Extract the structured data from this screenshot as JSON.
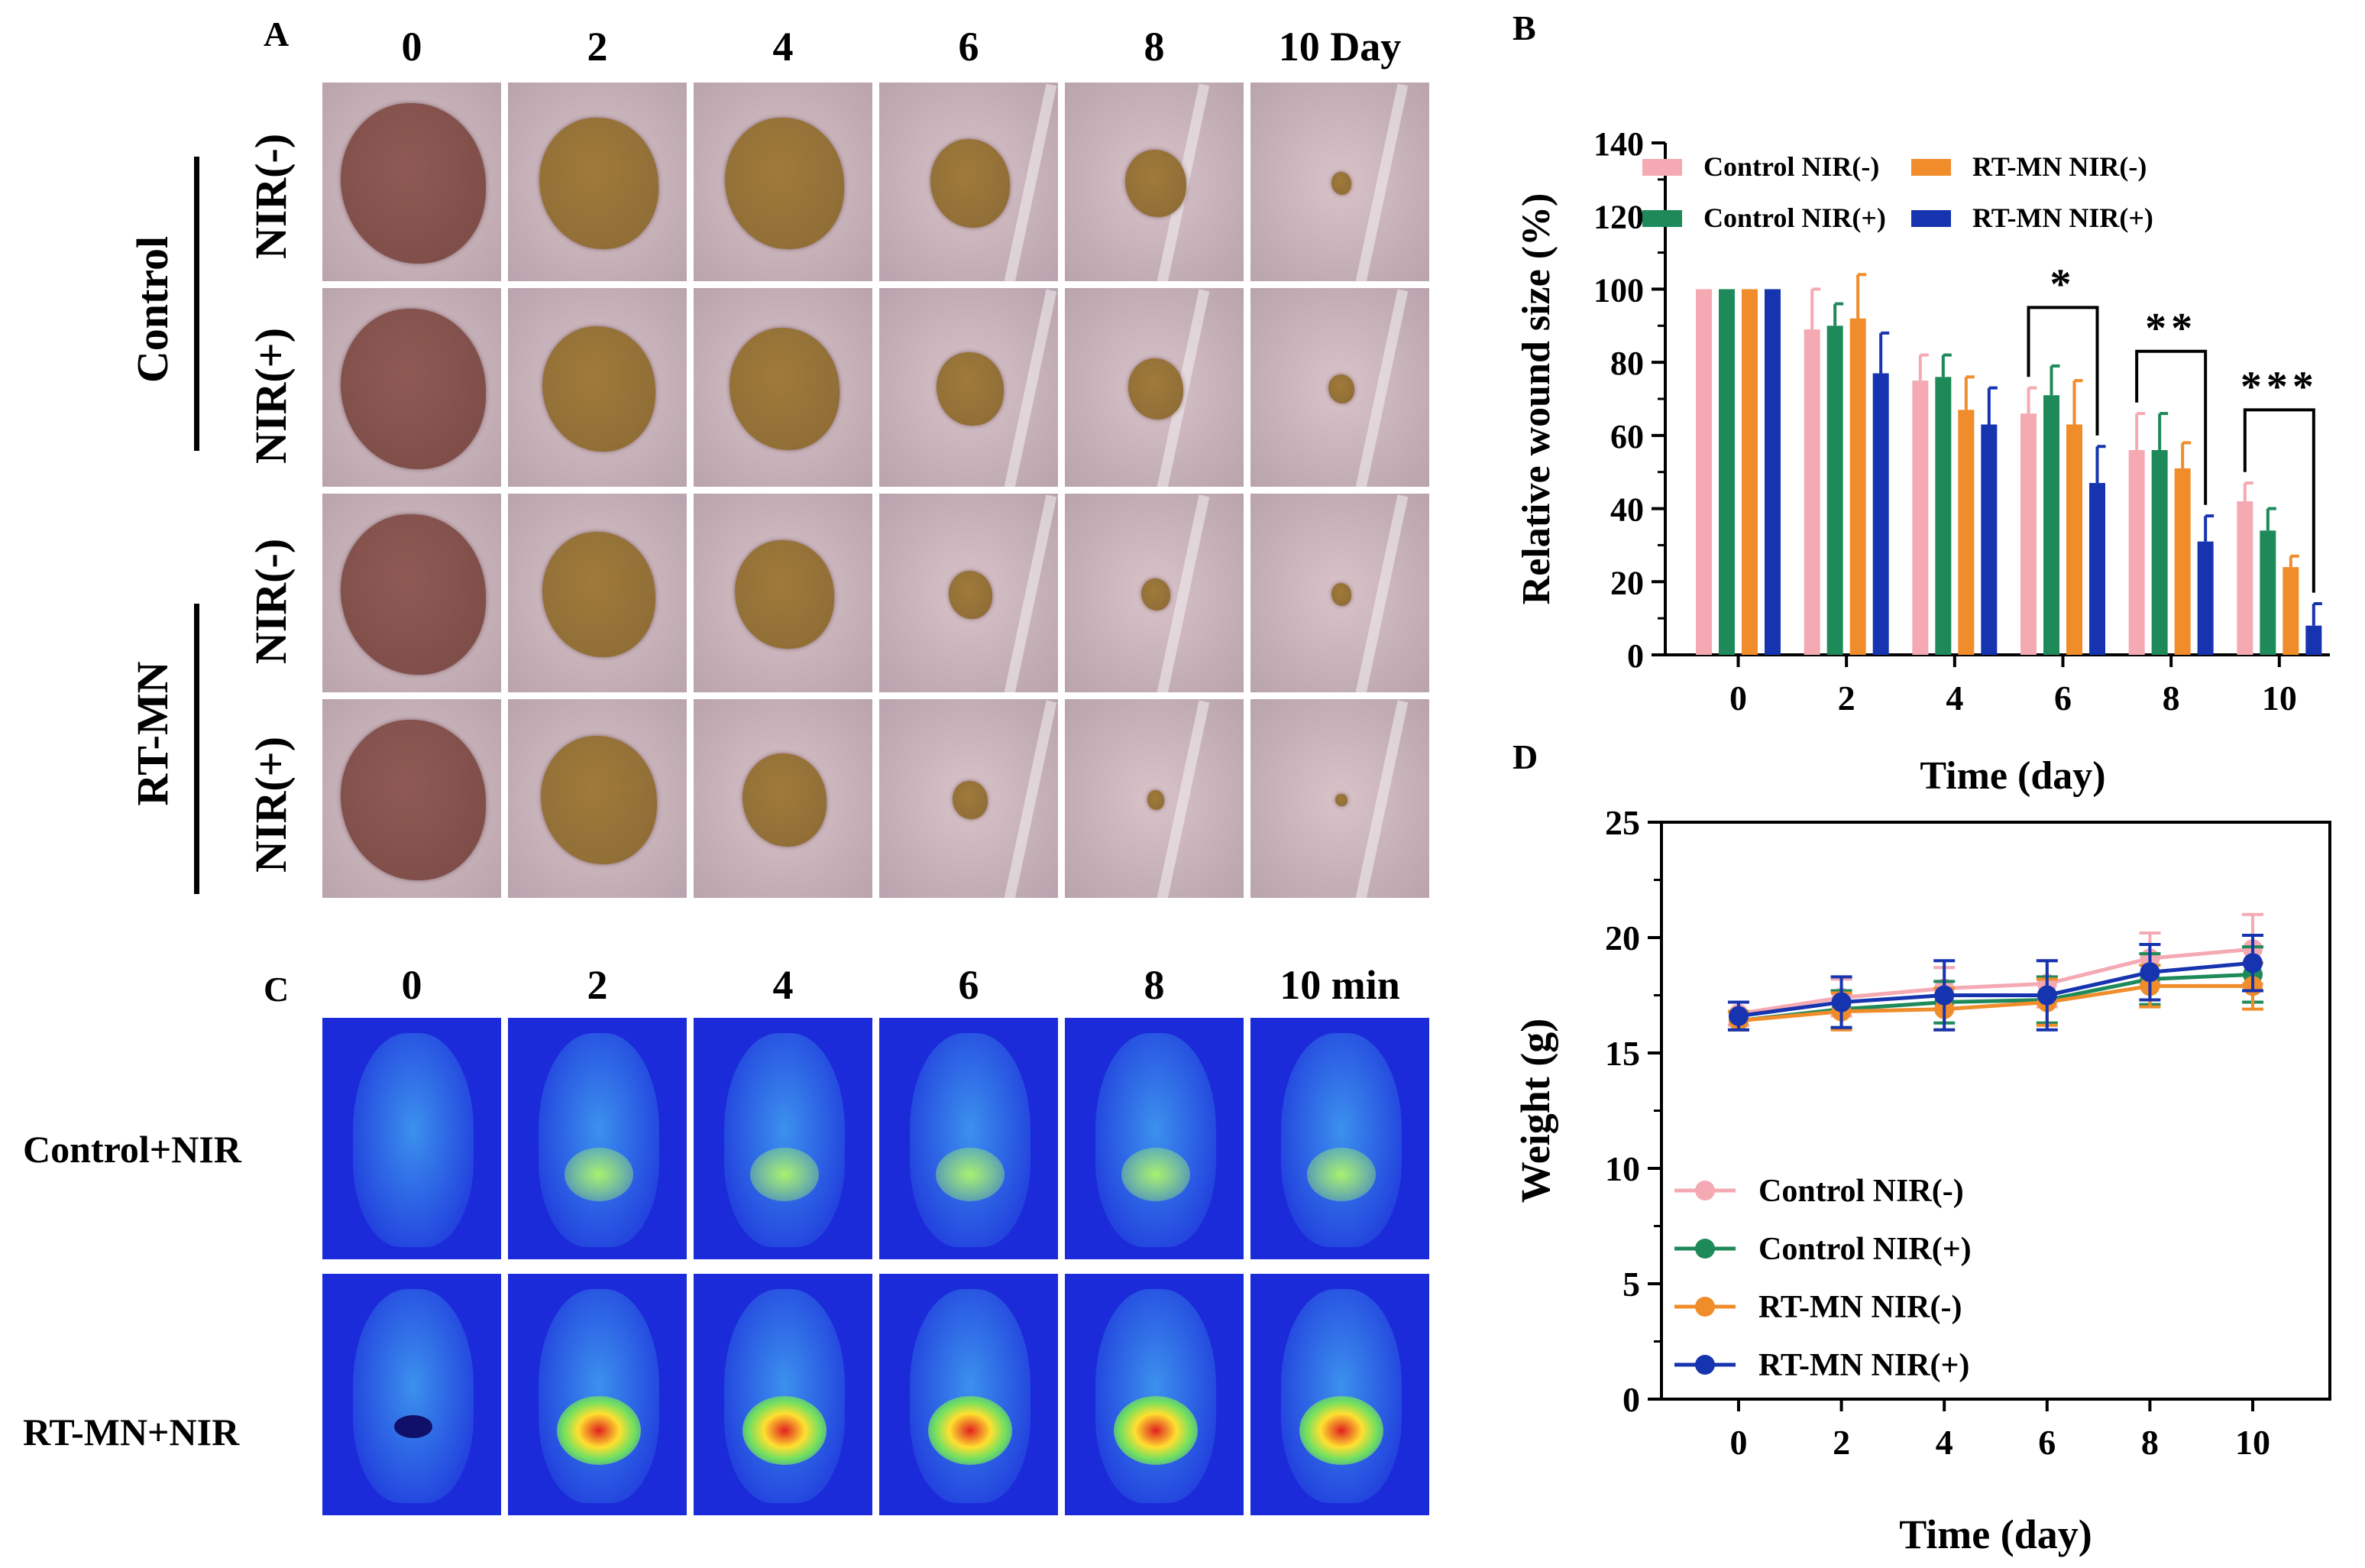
{
  "panel_a": {
    "label": "A",
    "days": [
      "0",
      "2",
      "4",
      "6",
      "8",
      "10 Day"
    ],
    "groups": [
      {
        "name": "Control",
        "rows": [
          "NIR(-)",
          "NIR(+)"
        ]
      },
      {
        "name": "RT-MN",
        "rows": [
          "NIR(-)",
          "NIR(+)"
        ]
      }
    ],
    "wound_photo_colors": {
      "skin": "#d9c3c9",
      "wound_day0": "#7a4a45",
      "wound_scab": "#8a6a35",
      "fur": "#f2f0f2"
    }
  },
  "panel_c": {
    "label": "C",
    "times": [
      "0",
      "2",
      "4",
      "6",
      "8",
      "10 min"
    ],
    "rows": [
      "Control+NIR",
      "RT-MN+NIR"
    ],
    "thermal_colors": {
      "background": "#1b2bd9",
      "body": "#3f9cf0",
      "hot_low": "#a8f070",
      "hot_high": "#e02020"
    }
  },
  "chart_data": [
    {
      "panel": "B",
      "type": "bar",
      "title": "",
      "xlabel": "Time (day)",
      "ylabel": "Relative wound size (%)",
      "ylim": [
        0,
        140
      ],
      "yticks": [
        "0",
        "20",
        "40",
        "60",
        "80",
        "100",
        "120",
        "140"
      ],
      "categories": [
        "0",
        "2",
        "4",
        "6",
        "8",
        "10"
      ],
      "series": [
        {
          "name": "Control NIR(-)",
          "color": "#f4a9b3",
          "values": [
            100,
            89,
            75,
            66,
            56,
            42
          ],
          "errors": [
            0,
            11,
            7,
            7,
            10,
            5
          ]
        },
        {
          "name": "Control NIR(+)",
          "color": "#1e8a5a",
          "values": [
            100,
            90,
            76,
            71,
            56,
            34
          ],
          "errors": [
            0,
            6,
            6,
            8,
            10,
            6
          ]
        },
        {
          "name": "RT-MN NIR(-)",
          "color": "#f08c2a",
          "values": [
            100,
            92,
            67,
            63,
            51,
            24
          ],
          "errors": [
            0,
            12,
            9,
            12,
            7,
            3
          ]
        },
        {
          "name": "RT-MN NIR(+)",
          "color": "#1734b0",
          "values": [
            100,
            77,
            63,
            47,
            31,
            8
          ],
          "errors": [
            0,
            11,
            10,
            10,
            7,
            6
          ]
        }
      ],
      "annotations": [
        {
          "text": "*",
          "day": "6",
          "bracket_y": 95
        },
        {
          "text": "**",
          "day": "8",
          "bracket_y": 83
        },
        {
          "text": "***",
          "day": "10",
          "bracket_y": 67
        }
      ],
      "legend_position": "top"
    },
    {
      "panel": "D",
      "type": "line",
      "title": "",
      "xlabel": "Time (day)",
      "ylabel": "Weight (g)",
      "ylim": [
        0,
        25
      ],
      "xlim": [
        -1.5,
        11.5
      ],
      "yticks": [
        "0",
        "5",
        "10",
        "15",
        "20",
        "25"
      ],
      "x": [
        0,
        2,
        4,
        6,
        8,
        10
      ],
      "xticks": [
        "0",
        "2",
        "4",
        "6",
        "8",
        "10"
      ],
      "series": [
        {
          "name": "Control NIR(-)",
          "color": "#f4a9b3",
          "values": [
            16.7,
            17.4,
            17.8,
            18.0,
            19.1,
            19.5
          ],
          "errors": [
            0.5,
            0.8,
            0.9,
            1.0,
            1.1,
            1.5
          ]
        },
        {
          "name": "Control NIR(+)",
          "color": "#1e8a5a",
          "values": [
            16.4,
            16.9,
            17.2,
            17.3,
            18.2,
            18.4
          ],
          "errors": [
            0.4,
            0.8,
            0.9,
            1.0,
            1.1,
            1.2
          ]
        },
        {
          "name": "RT-MN NIR(-)",
          "color": "#f08c2a",
          "values": [
            16.4,
            16.8,
            16.9,
            17.2,
            17.9,
            17.9
          ],
          "errors": [
            0.4,
            0.8,
            0.9,
            1.0,
            0.9,
            1.0
          ]
        },
        {
          "name": "RT-MN NIR(+)",
          "color": "#1734b0",
          "values": [
            16.6,
            17.2,
            17.5,
            17.5,
            18.5,
            18.9
          ],
          "errors": [
            0.6,
            1.1,
            1.5,
            1.5,
            1.2,
            1.2
          ]
        }
      ],
      "legend_position": "bottom-left"
    }
  ]
}
